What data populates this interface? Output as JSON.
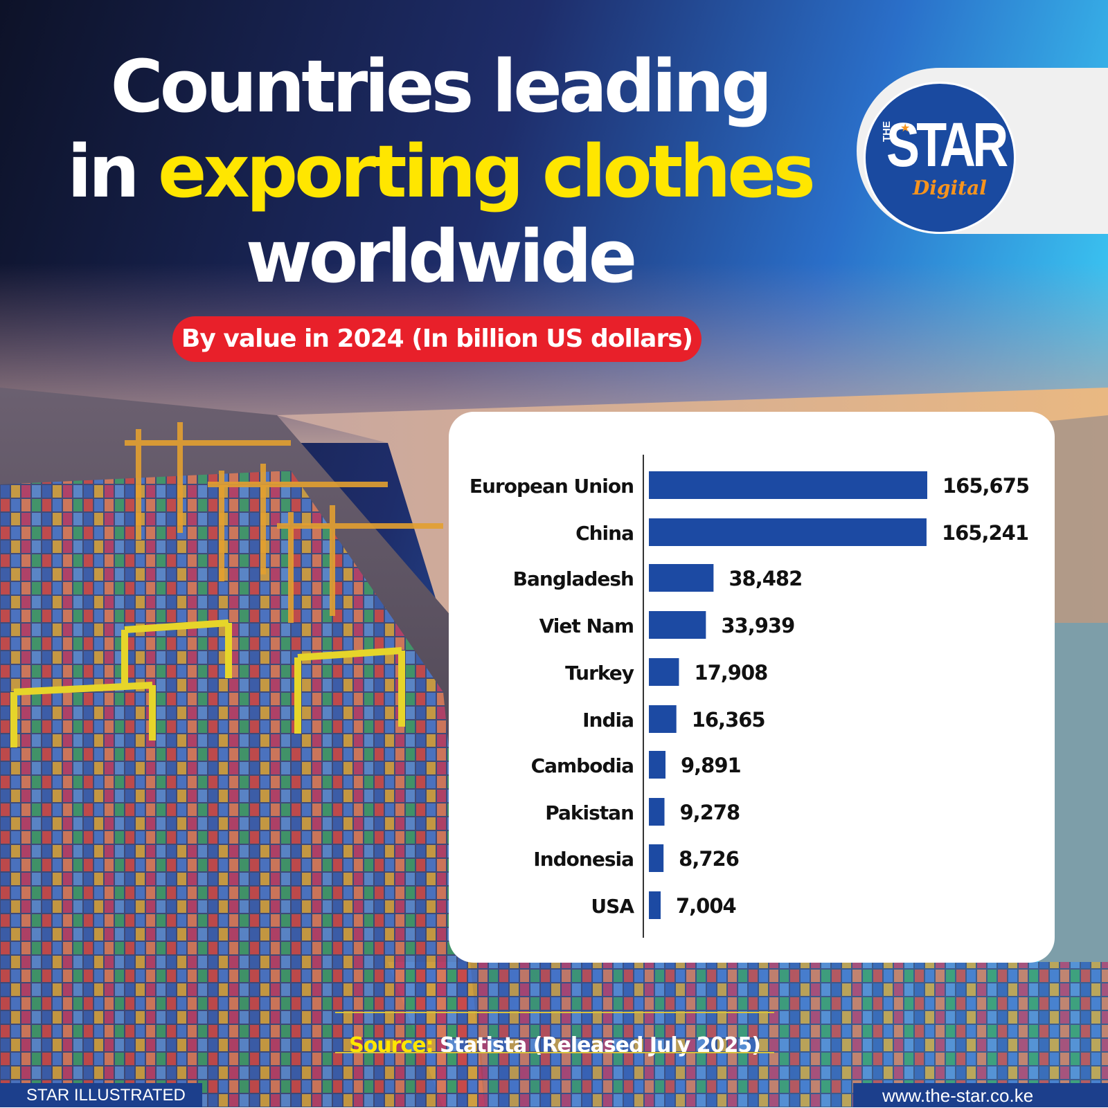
{
  "header": {
    "title_line1": "Countries leading",
    "title_line2_prefix": "in ",
    "title_line2_highlight": "exporting clothes",
    "title_line3": "worldwide",
    "subtitle": "By value in 2024 (In billion US dollars)"
  },
  "logo": {
    "the": "THE",
    "star": "STAR",
    "digital": "Digital"
  },
  "source": {
    "label": "Source:",
    "text": " Statista (Released July 2025)"
  },
  "footer": {
    "left": "STAR ILLUSTRATED",
    "right": "www.the-star.co.ke"
  },
  "colors": {
    "bar": "#1c4aa3",
    "highlight": "#ffe600",
    "pill": "#e8202a",
    "footer": "#1c3f8c"
  },
  "chart_data": {
    "type": "bar",
    "orientation": "horizontal",
    "categories": [
      "European Union",
      "China",
      "Bangladesh",
      "Viet Nam",
      "Turkey",
      "India",
      "Cambodia",
      "Pakistan",
      "Indonesia",
      "USA"
    ],
    "values": [
      165675,
      165241,
      38482,
      33939,
      17908,
      16365,
      9891,
      9278,
      8726,
      7004
    ],
    "value_labels": [
      "165,675",
      "165,241",
      "38,482",
      "33,939",
      "17,908",
      "16,365",
      "9,891",
      "9,278",
      "8,726",
      "7,004"
    ],
    "title": "By value in 2024 (In billion US dollars)",
    "xlabel": "",
    "ylabel": "",
    "xlim": [
      0,
      165675
    ],
    "grid": false,
    "legend": "none"
  }
}
